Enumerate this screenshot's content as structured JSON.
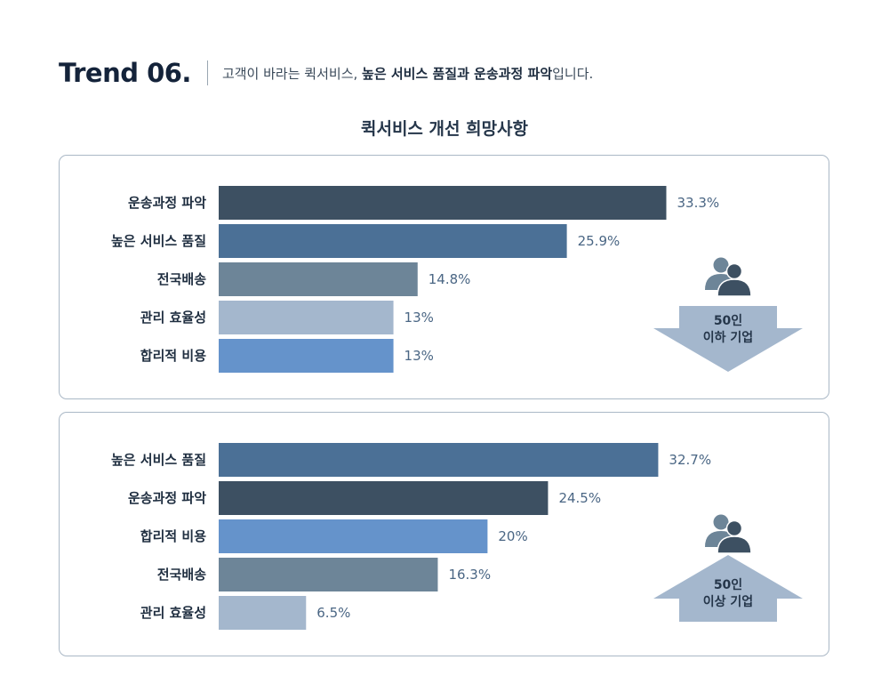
{
  "header": {
    "trend": "Trend 06.",
    "subtitle_pre": "고객이 바라는 퀵서비스, ",
    "subtitle_bold": "높은 서비스 품질과 운송과정 파악",
    "subtitle_post": "입니다."
  },
  "colors": {
    "운송과정 파악": "#3d5062",
    "높은 서비스 품질": "#4b7096",
    "전국배송": "#6d8598",
    "관리 효율성": "#a4b7cd",
    "합리적 비용": "#6593cb"
  },
  "chart_data": [
    {
      "type": "bar",
      "orientation": "horizontal",
      "title": "퀵서비스 개선 희망사항",
      "group_line1": "50인",
      "group_line2": "이하 기업",
      "group_arrow": "down",
      "xlim": [
        0,
        40
      ],
      "categories": [
        "운송과정 파악",
        "높은 서비스 품질",
        "전국배송",
        "관리 효율성",
        "합리적 비용"
      ],
      "values": [
        33.3,
        25.9,
        14.8,
        13,
        13
      ],
      "value_labels": [
        "33.3%",
        "25.9%",
        "14.8%",
        "13%",
        "13%"
      ]
    },
    {
      "type": "bar",
      "orientation": "horizontal",
      "group_line1": "50인",
      "group_line2": "이상 기업",
      "group_arrow": "up",
      "xlim": [
        0,
        40
      ],
      "categories": [
        "높은 서비스 품질",
        "운송과정 파악",
        "합리적 비용",
        "전국배송",
        "관리 효율성"
      ],
      "values": [
        32.7,
        24.5,
        20,
        16.3,
        6.5
      ],
      "value_labels": [
        "32.7%",
        "24.5%",
        "20%",
        "16.3%",
        "6.5%"
      ]
    }
  ]
}
